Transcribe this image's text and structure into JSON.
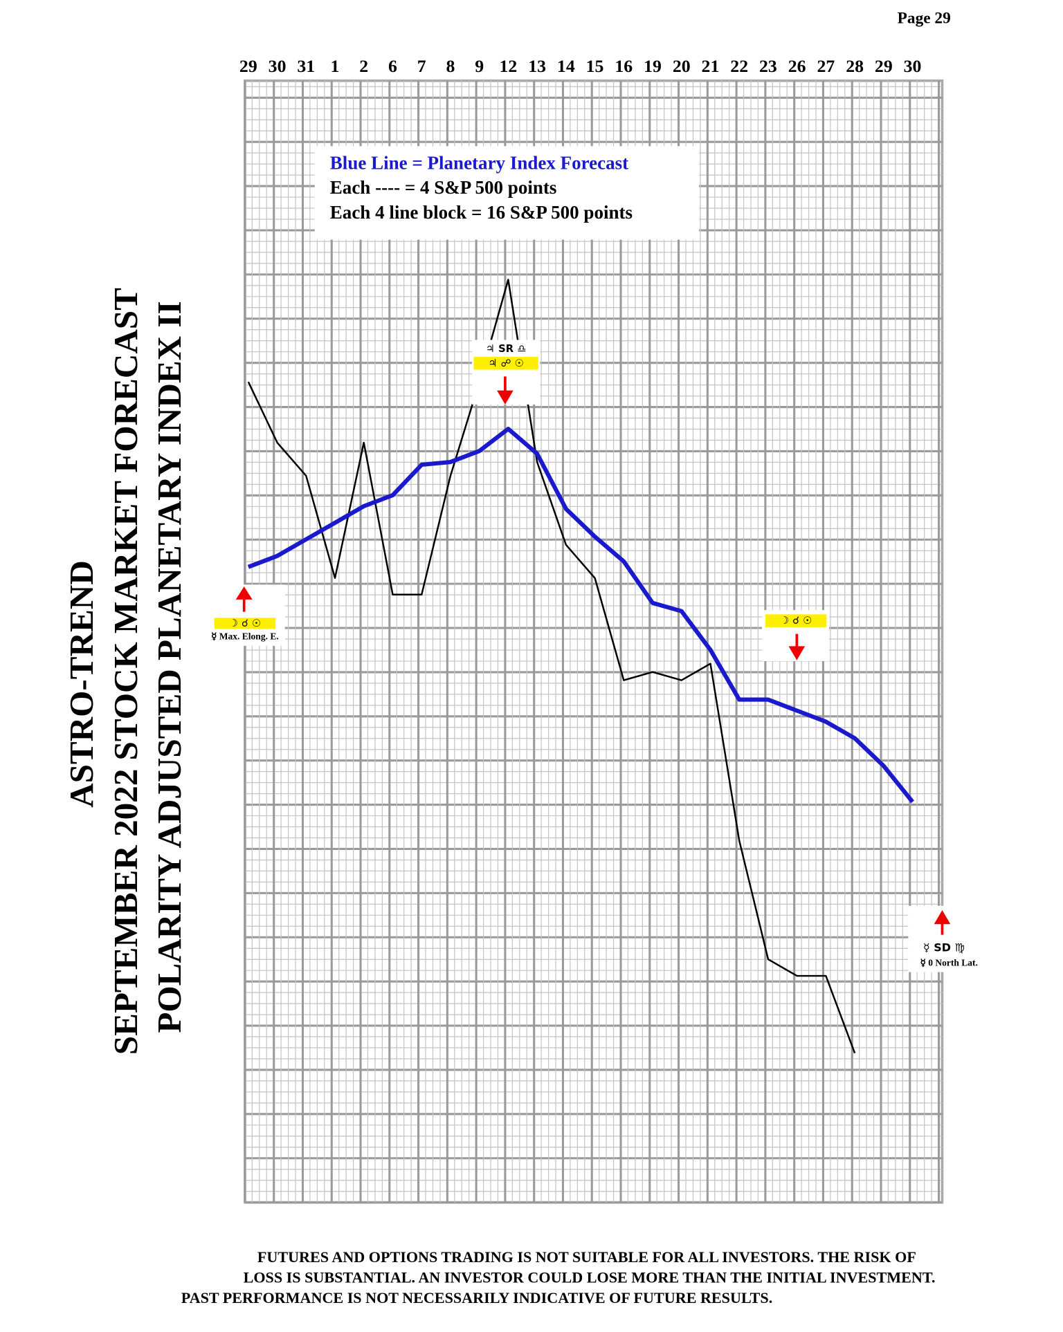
{
  "page_number": "Page  29",
  "title_lines": [
    "ASTRO-TREND",
    "SEPTEMBER 2022  STOCK MARKET FORECAST",
    "POLARITY ADJUSTED PLANETARY INDEX II"
  ],
  "chart_data": {
    "type": "line",
    "legend_lines": [
      "Blue Line = Planetary Index Forecast",
      "Each ---- =   4 S&P 500 points",
      "Each 4 line block =  16  S&P 500 points"
    ],
    "categories": [
      "29",
      "30",
      "31",
      "1",
      "2",
      "6",
      "7",
      "8",
      "9",
      "12",
      "13",
      "14",
      "15",
      "16",
      "19",
      "20",
      "21",
      "22",
      "23",
      "26",
      "27",
      "28",
      "29",
      "30"
    ],
    "series": [
      {
        "color": "#1a1acc",
        "values": [
          230,
          234,
          240,
          246,
          252,
          256,
          267,
          268,
          272,
          280,
          271,
          251,
          241,
          232,
          217,
          214,
          200,
          182,
          182,
          178,
          174,
          168,
          158,
          145
        ]
      },
      {
        "color": "#000000",
        "values": [
          297,
          275,
          263,
          226,
          275,
          220,
          220,
          263,
          297,
          334,
          268,
          238,
          226,
          189,
          192,
          189,
          195,
          131,
          88,
          82,
          82,
          54,
          null,
          null
        ]
      }
    ],
    "ylim": [
      0,
      406
    ],
    "grid": true,
    "annotations": [
      {
        "symbols": "☽ ☌ ☉",
        "note": "☿ Max. Elong. E."
      },
      {
        "symbols_top": "♃ SR ♎",
        "symbols": "♃ ☍ ☉"
      },
      {
        "symbols": "☽ ☌ ☉"
      },
      {
        "symbols": "☿ SD ♍",
        "note": "☿ 0 North Lat."
      }
    ]
  },
  "footer_lines": [
    "FUTURES AND OPTIONS TRADING IS NOT SUITABLE FOR ALL INVESTORS.  THE RISK OF",
    "LOSS IS SUBSTANTIAL.  AN INVESTOR COULD LOSE MORE THAN THE INITIAL INVESTMENT.",
    "PAST PERFORMANCE IS NOT NECESSARILY INDICATIVE OF FUTURE RESULTS."
  ]
}
